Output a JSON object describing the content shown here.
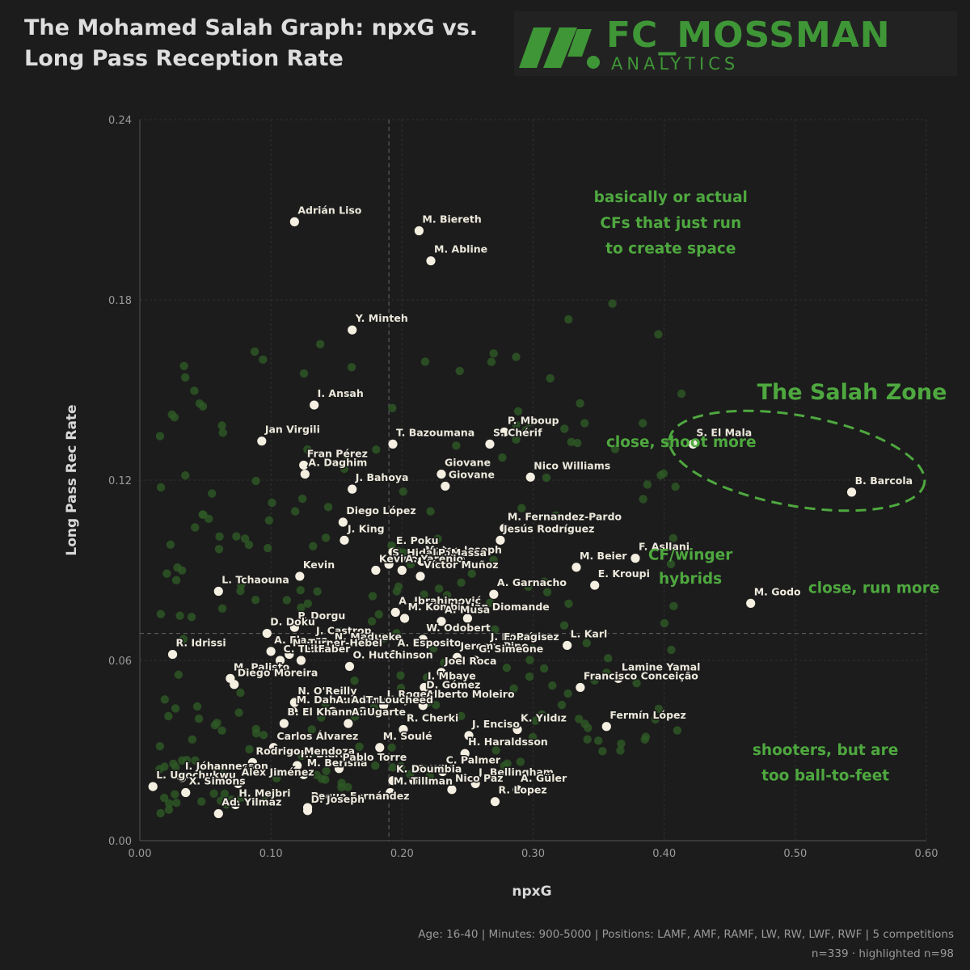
{
  "title_line1": "The Mohamed Salah Graph: npxG vs.",
  "title_line2": "Long Pass Reception Rate",
  "logo": {
    "name": "FC_MOSSMAN",
    "sub": "ANALYTICS",
    "brand_color": "#3f9637"
  },
  "footer": {
    "filters": "Age: 16-40 | Minutes: 900-5000 | Positions: LAMF, AMF, RAMF, LW, RW, LWF, RWF | 5 competitions",
    "counts": "n=339 · highlighted n=98"
  },
  "colors": {
    "background": "#1c1c1c",
    "highlight": "#f4efe1",
    "background_points": "#2e5a26",
    "annotation": "#4ea83f"
  },
  "chart_data": {
    "type": "scatter",
    "xlabel": "npxG",
    "ylabel": "Long Pass Rec Rate",
    "xlim": [
      0,
      0.6
    ],
    "ylim": [
      0,
      0.24
    ],
    "xticks": [
      "0.00",
      "0.10",
      "0.20",
      "0.30",
      "0.40",
      "0.50",
      "0.60"
    ],
    "yticks": [
      "0.00",
      "0.06",
      "0.12",
      "0.18",
      "0.24"
    ],
    "reference_lines": {
      "x": 0.19,
      "y": 0.069
    },
    "highlighted": [
      {
        "name": "Adrián Liso",
        "x": 0.118,
        "y": 0.206
      },
      {
        "name": "M. Biereth",
        "x": 0.213,
        "y": 0.203
      },
      {
        "name": "M. Abline",
        "x": 0.222,
        "y": 0.193
      },
      {
        "name": "Y. Minteh",
        "x": 0.162,
        "y": 0.17
      },
      {
        "name": "I. Ansah",
        "x": 0.133,
        "y": 0.145
      },
      {
        "name": "Jan Virgili",
        "x": 0.093,
        "y": 0.133
      },
      {
        "name": "T. Bazoumana",
        "x": 0.193,
        "y": 0.132
      },
      {
        "name": "P. Mboup",
        "x": 0.278,
        "y": 0.136
      },
      {
        "name": "S. Chérif",
        "x": 0.267,
        "y": 0.132
      },
      {
        "name": "S. El Mala",
        "x": 0.422,
        "y": 0.132
      },
      {
        "name": "Fran Pérez",
        "x": 0.125,
        "y": 0.125
      },
      {
        "name": "A. Daghim",
        "x": 0.126,
        "y": 0.122
      },
      {
        "name": "Giovane",
        "x": 0.23,
        "y": 0.122
      },
      {
        "name": "Giovane",
        "x": 0.233,
        "y": 0.118
      },
      {
        "name": "Nico Williams",
        "x": 0.298,
        "y": 0.121
      },
      {
        "name": "J. Bahoya",
        "x": 0.162,
        "y": 0.117
      },
      {
        "name": "B. Barcola",
        "x": 0.543,
        "y": 0.116
      },
      {
        "name": "Diego López",
        "x": 0.155,
        "y": 0.106
      },
      {
        "name": "J. King",
        "x": 0.156,
        "y": 0.1
      },
      {
        "name": "M. Fernandez-Pardo",
        "x": 0.278,
        "y": 0.104
      },
      {
        "name": "E. Poku",
        "x": 0.193,
        "y": 0.096
      },
      {
        "name": "Mateo Joseph",
        "x": 0.215,
        "y": 0.093
      },
      {
        "name": "Jesús Rodríguez",
        "x": 0.275,
        "y": 0.1
      },
      {
        "name": "F. Asllani",
        "x": 0.378,
        "y": 0.094
      },
      {
        "name": "S. Hidalgo",
        "x": 0.19,
        "y": 0.092
      },
      {
        "name": "P. Massa",
        "x": 0.225,
        "y": 0.092
      },
      {
        "name": "Kevin",
        "x": 0.122,
        "y": 0.088
      },
      {
        "name": "Kevino Moreira",
        "x": 0.18,
        "y": 0.09
      },
      {
        "name": "A. Yarenjo",
        "x": 0.2,
        "y": 0.09
      },
      {
        "name": "Víctor Muñoz",
        "x": 0.214,
        "y": 0.088
      },
      {
        "name": "M. Beier",
        "x": 0.333,
        "y": 0.091
      },
      {
        "name": "L. Tchaouna",
        "x": 0.06,
        "y": 0.083
      },
      {
        "name": "A. Garnacho",
        "x": 0.27,
        "y": 0.082
      },
      {
        "name": "E. Kroupi",
        "x": 0.347,
        "y": 0.085
      },
      {
        "name": "A. Ibrahimović",
        "x": 0.195,
        "y": 0.076
      },
      {
        "name": "M. Kombi",
        "x": 0.202,
        "y": 0.074
      },
      {
        "name": "Ian Diomande",
        "x": 0.25,
        "y": 0.074
      },
      {
        "name": "M. Godo",
        "x": 0.466,
        "y": 0.079
      },
      {
        "name": "P. Dorgu",
        "x": 0.118,
        "y": 0.071
      },
      {
        "name": "D. Doku",
        "x": 0.097,
        "y": 0.069
      },
      {
        "name": "A. Musa",
        "x": 0.23,
        "y": 0.073
      },
      {
        "name": "J. Castrop",
        "x": 0.132,
        "y": 0.066
      },
      {
        "name": "W. Odobert",
        "x": 0.216,
        "y": 0.067
      },
      {
        "name": "L. Karl",
        "x": 0.326,
        "y": 0.065
      },
      {
        "name": "R. Idrissi",
        "x": 0.025,
        "y": 0.062
      },
      {
        "name": "N. Madueke",
        "x": 0.146,
        "y": 0.064
      },
      {
        "name": "J. Rodríguez",
        "x": 0.265,
        "y": 0.064
      },
      {
        "name": "F. Pagis",
        "x": 0.275,
        "y": 0.064
      },
      {
        "name": "A. Elanga",
        "x": 0.1,
        "y": 0.063
      },
      {
        "name": "N. Turner-Hebel",
        "x": 0.114,
        "y": 0.062
      },
      {
        "name": "A. Esposito",
        "x": 0.194,
        "y": 0.062
      },
      {
        "name": "Jeremy Pino",
        "x": 0.242,
        "y": 0.061
      },
      {
        "name": "G. Simeone",
        "x": 0.256,
        "y": 0.06
      },
      {
        "name": "C. Taibi",
        "x": 0.107,
        "y": 0.06
      },
      {
        "name": "L. Faber",
        "x": 0.123,
        "y": 0.06
      },
      {
        "name": "O. Hutchinson",
        "x": 0.16,
        "y": 0.058
      },
      {
        "name": "Joel Roca",
        "x": 0.23,
        "y": 0.056
      },
      {
        "name": "Lamine Yamal",
        "x": 0.365,
        "y": 0.054
      },
      {
        "name": "M. Palisto",
        "x": 0.069,
        "y": 0.054
      },
      {
        "name": "Diego Moreira",
        "x": 0.072,
        "y": 0.052
      },
      {
        "name": "I. Mbaye",
        "x": 0.217,
        "y": 0.051
      },
      {
        "name": "Francisco Conceição",
        "x": 0.336,
        "y": 0.051
      },
      {
        "name": "N. O'Reilly",
        "x": 0.118,
        "y": 0.046
      },
      {
        "name": "D. Gómez",
        "x": 0.216,
        "y": 0.048
      },
      {
        "name": "M. Dahoud",
        "x": 0.117,
        "y": 0.043
      },
      {
        "name": "A. Adamsbaye",
        "x": 0.147,
        "y": 0.043
      },
      {
        "name": "J. Rogers",
        "x": 0.186,
        "y": 0.045
      },
      {
        "name": "Alberto Moleiro",
        "x": 0.216,
        "y": 0.045
      },
      {
        "name": "T. Loucheed",
        "x": 0.17,
        "y": 0.043
      },
      {
        "name": "B. El Khannouss",
        "x": 0.11,
        "y": 0.039
      },
      {
        "name": "A. Ugarte",
        "x": 0.159,
        "y": 0.039
      },
      {
        "name": "R. Cherki",
        "x": 0.201,
        "y": 0.037
      },
      {
        "name": "J. Enciso",
        "x": 0.251,
        "y": 0.035
      },
      {
        "name": "K. Yıldız",
        "x": 0.288,
        "y": 0.037
      },
      {
        "name": "Fermín López",
        "x": 0.356,
        "y": 0.038
      },
      {
        "name": "Carlos Álvarez",
        "x": 0.102,
        "y": 0.031
      },
      {
        "name": "M. Soulé",
        "x": 0.183,
        "y": 0.031
      },
      {
        "name": "H. Haraldsson",
        "x": 0.248,
        "y": 0.029
      },
      {
        "name": "H. Diarra",
        "x": 0.12,
        "y": 0.025
      },
      {
        "name": "Rodrigo Mendoza",
        "x": 0.086,
        "y": 0.026
      },
      {
        "name": "M. Berisha",
        "x": 0.125,
        "y": 0.022
      },
      {
        "name": "Pablo Torre",
        "x": 0.152,
        "y": 0.024
      },
      {
        "name": "C. Palmer",
        "x": 0.231,
        "y": 0.023
      },
      {
        "name": "I. Jóhannesson",
        "x": 0.032,
        "y": 0.021
      },
      {
        "name": "Álex Jiménez",
        "x": 0.075,
        "y": 0.019
      },
      {
        "name": "F. Wirtz",
        "x": 0.209,
        "y": 0.02
      },
      {
        "name": "K. Doumbia",
        "x": 0.193,
        "y": 0.02
      },
      {
        "name": "J. Bellingham",
        "x": 0.256,
        "y": 0.019
      },
      {
        "name": "L. Ugochukwu",
        "x": 0.01,
        "y": 0.018
      },
      {
        "name": "X. Simons",
        "x": 0.035,
        "y": 0.016
      },
      {
        "name": "M. Tillman",
        "x": 0.191,
        "y": 0.016
      },
      {
        "name": "Nico Paz",
        "x": 0.238,
        "y": 0.017
      },
      {
        "name": "A. Güler",
        "x": 0.288,
        "y": 0.017
      },
      {
        "name": "H. Mejbri",
        "x": 0.073,
        "y": 0.012
      },
      {
        "name": "Peque Fernández",
        "x": 0.128,
        "y": 0.011
      },
      {
        "name": "Ad. Yilmaz",
        "x": 0.06,
        "y": 0.009
      },
      {
        "name": "D. Joseph",
        "x": 0.128,
        "y": 0.01
      },
      {
        "name": "R. Lopez",
        "x": 0.271,
        "y": 0.013
      }
    ],
    "annotations": [
      {
        "text": "basically or actual",
        "x": 0.405,
        "y": 0.2125
      },
      {
        "text": "CFs that just run",
        "x": 0.405,
        "y": 0.204
      },
      {
        "text": "to create space",
        "x": 0.405,
        "y": 0.1955
      },
      {
        "text": "close, shoot more",
        "x": 0.413,
        "y": 0.131
      },
      {
        "text": "CF/winger",
        "x": 0.42,
        "y": 0.0935
      },
      {
        "text": "hybrids",
        "x": 0.42,
        "y": 0.0855
      },
      {
        "text": "close, run more",
        "x": 0.56,
        "y": 0.0825
      },
      {
        "text": "shooters, but are",
        "x": 0.523,
        "y": 0.0285
      },
      {
        "text": "too ball-to-feet",
        "x": 0.523,
        "y": 0.02
      }
    ],
    "zone": {
      "title": "The Salah Zone"
    }
  }
}
